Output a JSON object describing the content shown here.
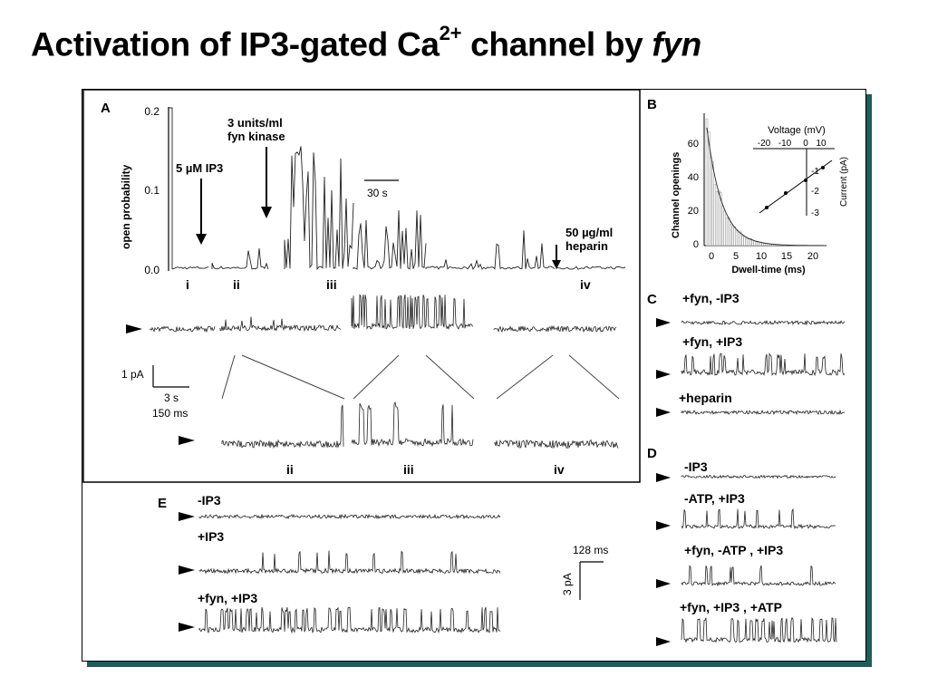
{
  "title": {
    "prefix": "Activation of IP3-gated Ca",
    "superscript": "2+",
    "middle": " channel by ",
    "italic": "fyn"
  },
  "panel_a": {
    "letter": "A",
    "ylabel": "open probability",
    "yticks": [
      "0.2",
      "0.1",
      "0.0"
    ],
    "annot_ip3": "5 µM IP3",
    "annot_fyn_1": "3 units/ml",
    "annot_fyn_2": "fyn kinase",
    "time_scale": "30 s",
    "annot_heparin_1": "50 µg/ml",
    "annot_heparin_2": "heparin",
    "segments": [
      "i",
      "ii",
      "iii",
      "iv"
    ],
    "scale_current": "1 pA",
    "scale_time_1": "3 s",
    "scale_time_2": "150 ms",
    "expanded_labels": [
      "ii",
      "iii",
      "iv"
    ]
  },
  "panel_b": {
    "letter": "B",
    "ylabel": "Channel openings",
    "xlabel": "Dwell-time (ms)",
    "yticks": [
      "60",
      "40",
      "20",
      "0"
    ],
    "xticks": [
      "0",
      "5",
      "10",
      "15",
      "20"
    ],
    "inset_title": "Voltage (mV)",
    "inset_xticks": [
      "-20",
      "-10",
      "0",
      "10"
    ],
    "inset_yticks": [
      "-1",
      "-2",
      "-3"
    ],
    "inset_ylabel": "Current (pA)"
  },
  "panel_c": {
    "letter": "C",
    "traces": [
      "+fyn, -IP3",
      "+fyn, +IP3",
      "+heparin"
    ]
  },
  "panel_d": {
    "letter": "D",
    "traces": [
      "-IP3",
      "-ATP, +IP3",
      "+fyn, -ATP , +IP3",
      "+fyn, +IP3 , +ATP"
    ]
  },
  "panel_e": {
    "letter": "E",
    "traces": [
      "-IP3",
      "+IP3",
      "+fyn, +IP3"
    ],
    "scale_time": "128 ms",
    "scale_current": "3 pA"
  }
}
